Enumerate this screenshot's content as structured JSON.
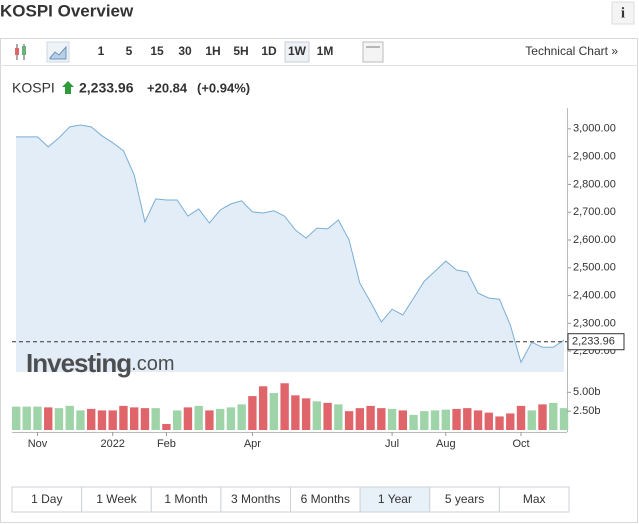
{
  "header": {
    "title": "KOSPI Overview",
    "info": "i"
  },
  "toolbar": {
    "buttons": [
      "1",
      "5",
      "15",
      "30",
      "1H",
      "5H",
      "1D",
      "1W",
      "1M"
    ],
    "selected": 7,
    "link": "Technical Chart »"
  },
  "quote": {
    "name": "KOSPI",
    "price": "2,233.96",
    "change": "+20.84",
    "change_pct": "(+0.94%)"
  },
  "watermark": {
    "brand": "Investing",
    "suffix": ".com"
  },
  "chart_data": [
    {
      "type": "area",
      "color": "#7aaed6",
      "fill": "#e3edf7",
      "categories": [
        null,
        null,
        "Nov",
        null,
        null,
        null,
        null,
        null,
        null,
        "2022",
        null,
        null,
        null,
        null,
        "Feb",
        null,
        null,
        null,
        null,
        null,
        null,
        null,
        "Apr",
        null,
        null,
        null,
        null,
        null,
        null,
        null,
        null,
        null,
        null,
        null,
        null,
        "Jul",
        null,
        null,
        null,
        null,
        "Aug",
        null,
        null,
        null,
        null,
        null,
        null,
        "Oct",
        null,
        null,
        null,
        null
      ],
      "values": [
        2971,
        2971,
        2971,
        2935,
        2968,
        3007,
        3014,
        3007,
        2975,
        2950,
        2921,
        2834,
        2665,
        2748,
        2744,
        2744,
        2686,
        2712,
        2661,
        2708,
        2730,
        2741,
        2701,
        2697,
        2705,
        2686,
        2636,
        2607,
        2643,
        2640,
        2672,
        2600,
        2445,
        2377,
        2305,
        2351,
        2330,
        2391,
        2452,
        2488,
        2524,
        2492,
        2485,
        2409,
        2391,
        2387,
        2294,
        2160,
        2232,
        2214,
        2214,
        2240
      ],
      "last_value": 2233.96,
      "last_label": "2,233.96",
      "ylim": [
        2125,
        3075
      ],
      "yticks": [
        {
          "value": 2200,
          "label": "2,200.00"
        },
        {
          "value": 2300,
          "label": "2,300.00"
        },
        {
          "value": 2400,
          "label": "2,400.00"
        },
        {
          "value": 2500,
          "label": "2,500.00"
        },
        {
          "value": 2600,
          "label": "2,600.00"
        },
        {
          "value": 2700,
          "label": "2,700.00"
        },
        {
          "value": 2800,
          "label": "2,800.00"
        },
        {
          "value": 2900,
          "label": "2,900.00"
        },
        {
          "value": 3000,
          "label": "3,000.00"
        }
      ]
    },
    {
      "type": "bar",
      "up_color": "#9fd4a8",
      "down_color": "#e0656a",
      "values": [
        3.1,
        3.1,
        3.1,
        3.0,
        2.9,
        3.2,
        2.6,
        2.8,
        2.6,
        2.6,
        3.2,
        3.0,
        2.9,
        2.9,
        0.8,
        2.6,
        3.0,
        3.2,
        2.6,
        2.8,
        3.0,
        3.4,
        4.5,
        5.8,
        4.9,
        6.2,
        4.6,
        4.2,
        3.8,
        3.6,
        3.4,
        2.5,
        2.9,
        3.2,
        2.9,
        2.8,
        2.6,
        2.0,
        2.5,
        2.6,
        2.7,
        2.8,
        2.9,
        2.6,
        2.3,
        1.8,
        2.2,
        3.2,
        2.6,
        3.4,
        3.6,
        2.9
      ],
      "ylim": [
        0,
        6.5
      ],
      "yticks": [
        {
          "value": 2.5,
          "label": "2.50b"
        },
        {
          "value": 5,
          "label": "5.00b"
        }
      ]
    }
  ],
  "ranges": {
    "buttons": [
      "1 Day",
      "1 Week",
      "1 Month",
      "3 Months",
      "6 Months",
      "1 Year",
      "5 years",
      "Max"
    ],
    "selected": 5
  }
}
